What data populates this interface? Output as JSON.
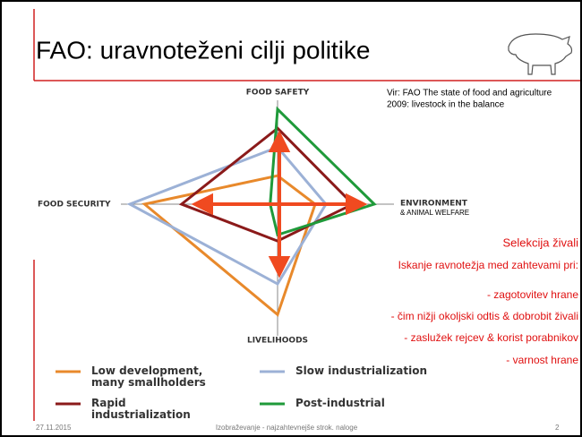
{
  "slide": {
    "title": "FAO: uravnoteženi cilji politike",
    "source": [
      "Vir: FAO The state of food and agriculture",
      "2009: livestock in the balance"
    ],
    "heading": "Selekcija živali",
    "intro": "Iskanje ravnotežja med zahtevami pri:",
    "items": [
      "- zagotovitev hrane",
      "- čim nižji okoljski odtis & dobrobit živali",
      "- zaslužek rejcev & korist porabnikov",
      "- varnost hrane"
    ],
    "environment_note": "& ANIMAL WELFARE",
    "footer_date": "27.11.2015",
    "footer_text": "Izobraževanje - najzahtevnejše strok. naloge",
    "page_number": "2"
  },
  "chart_data": {
    "type": "radar",
    "categories": [
      "FOOD SAFETY",
      "ENVIRONMENT",
      "LIVELIHOODS",
      "FOOD SECURITY"
    ],
    "ylim": [
      0,
      1
    ],
    "series": [
      {
        "name": "Low development, many smallholders",
        "color": "#e8892b",
        "values": [
          0.3,
          0.35,
          0.9,
          0.9
        ]
      },
      {
        "name": "Slow industrialization",
        "color": "#9cb1d6",
        "values": [
          0.6,
          0.45,
          0.65,
          1.0
        ]
      },
      {
        "name": "Rapid industrialization",
        "color": "#8b1a1a",
        "values": [
          0.8,
          0.7,
          0.3,
          0.65
        ]
      },
      {
        "name": "Post-industrial",
        "color": "#1f9a3a",
        "values": [
          1.0,
          0.9,
          0.25,
          0.05
        ]
      }
    ]
  }
}
